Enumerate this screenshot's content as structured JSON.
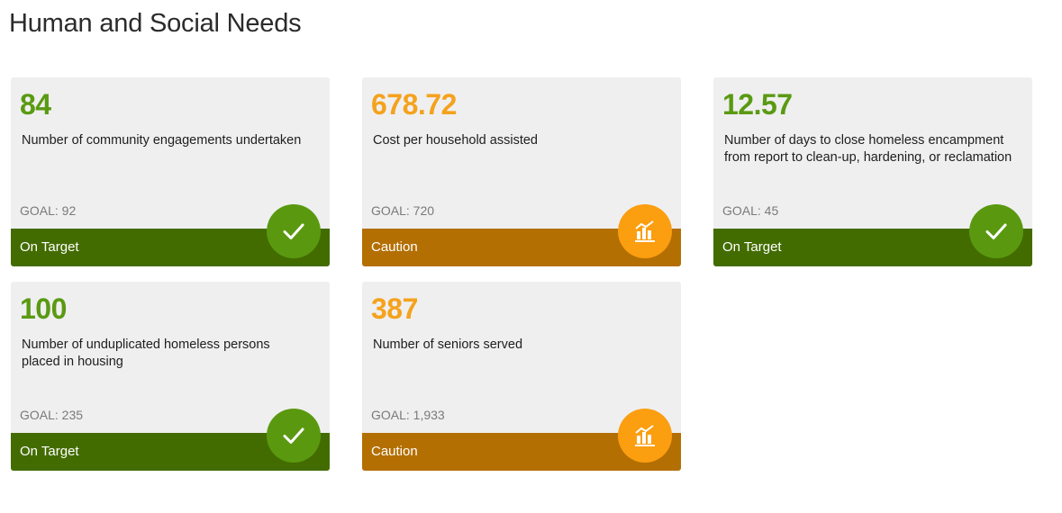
{
  "page": {
    "title": "Human and Social Needs"
  },
  "colors": {
    "on_target_value": "#5a9a12",
    "on_target_bar": "#436c00",
    "on_target_icon": "#5a990f",
    "caution_value": "#f5a21c",
    "caution_bar": "#b46f02",
    "caution_icon": "#fb9e10"
  },
  "cards": [
    {
      "value": "84",
      "description": "Number of community engagements undertaken",
      "goal": "GOAL: 92",
      "status": "On Target",
      "icon": "checkmark-icon"
    },
    {
      "value": "678.72",
      "description": "Cost per household assisted",
      "goal": "GOAL: 720",
      "status": "Caution",
      "icon": "bar-chart-icon"
    },
    {
      "value": "12.57",
      "description": "Number of days to close homeless encampment from report to clean-up, hardening, or reclamation",
      "goal": "GOAL: 45",
      "status": "On Target",
      "icon": "checkmark-icon"
    },
    {
      "value": "100",
      "description": "Number of unduplicated homeless persons placed in housing",
      "goal": "GOAL: 235",
      "status": "On Target",
      "icon": "checkmark-icon"
    },
    {
      "value": "387",
      "description": "Number of seniors served",
      "goal": "GOAL: 1,933",
      "status": "Caution",
      "icon": "bar-chart-icon"
    }
  ]
}
